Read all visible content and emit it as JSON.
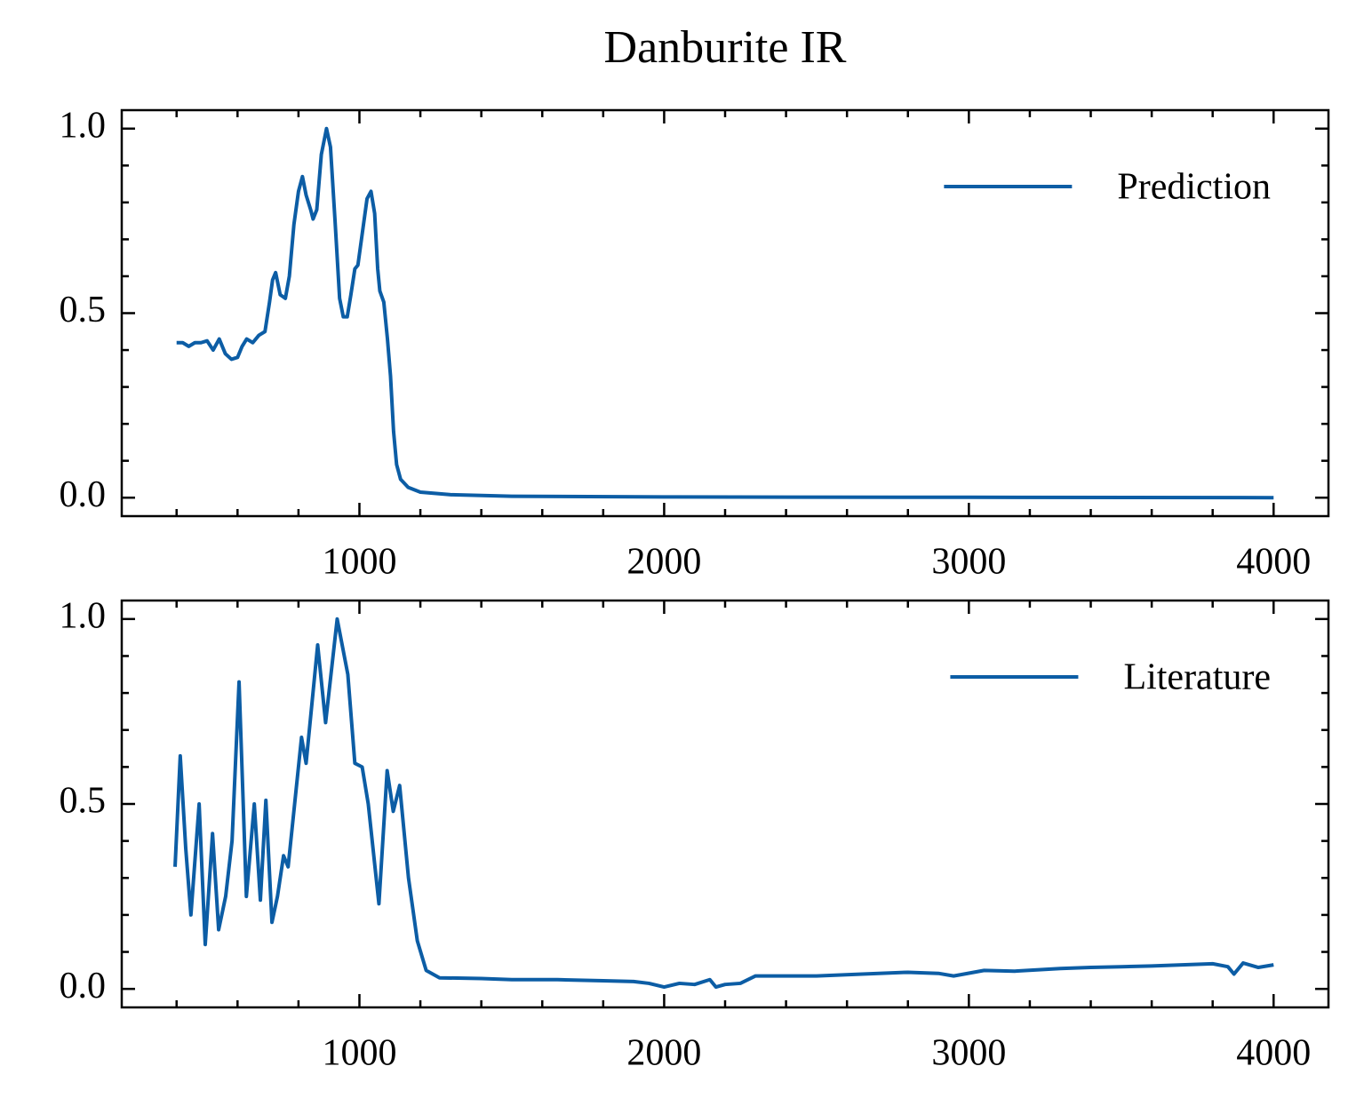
{
  "title": "Danburite IR",
  "chart_data": [
    {
      "type": "line",
      "x": [
        400,
        420,
        440,
        460,
        480,
        500,
        520,
        540,
        560,
        580,
        600,
        615,
        630,
        650,
        670,
        690,
        705,
        715,
        725,
        740,
        757,
        770,
        785,
        800,
        813,
        825,
        840,
        848,
        860,
        875,
        892,
        905,
        920,
        935,
        947,
        960,
        972,
        985,
        995,
        1010,
        1025,
        1038,
        1050,
        1060,
        1067,
        1080,
        1092,
        1102,
        1112,
        1122,
        1135,
        1160,
        1200,
        1300,
        1500,
        2000,
        3000,
        4000
      ],
      "series": [
        {
          "name": "Prediction",
          "color": "#0c5da5",
          "values": [
            0.42,
            0.42,
            0.41,
            0.42,
            0.42,
            0.425,
            0.4,
            0.43,
            0.39,
            0.375,
            0.38,
            0.41,
            0.43,
            0.42,
            0.44,
            0.45,
            0.53,
            0.59,
            0.61,
            0.55,
            0.54,
            0.6,
            0.74,
            0.83,
            0.87,
            0.82,
            0.78,
            0.755,
            0.78,
            0.93,
            1.0,
            0.95,
            0.75,
            0.54,
            0.49,
            0.49,
            0.55,
            0.62,
            0.63,
            0.72,
            0.81,
            0.83,
            0.77,
            0.62,
            0.56,
            0.53,
            0.43,
            0.33,
            0.18,
            0.09,
            0.05,
            0.028,
            0.015,
            0.008,
            0.004,
            0.002,
            0.001,
            0.0
          ]
        }
      ],
      "xlim": [
        220,
        4180
      ],
      "ylim": [
        -0.05,
        1.05
      ],
      "xticks": [
        1000,
        2000,
        3000,
        4000
      ],
      "yticks": [
        {
          "value": 0,
          "label": "0.0"
        },
        0.5,
        {
          "value": 1,
          "label": "1.0"
        }
      ],
      "xminorticks": [
        400,
        600,
        800,
        1200,
        1400,
        1600,
        1800,
        2200,
        2400,
        2600,
        2800,
        3200,
        3400,
        3600,
        3800
      ],
      "yminorticks": [
        0.1,
        0.2,
        0.3,
        0.4,
        0.6,
        0.7,
        0.8,
        0.9
      ],
      "legend": "upper right"
    },
    {
      "type": "line",
      "x": [
        395,
        412,
        430,
        447,
        474,
        494,
        518,
        538,
        561,
        582,
        605,
        629,
        655,
        675,
        693,
        713,
        731,
        751,
        766,
        810,
        825,
        863,
        889,
        927,
        962,
        985,
        1009,
        1029,
        1064,
        1091,
        1111,
        1132,
        1161,
        1190,
        1219,
        1263,
        1400,
        1500,
        1650,
        1800,
        1900,
        1950,
        2000,
        2050,
        2100,
        2150,
        2170,
        2200,
        2250,
        2300,
        2400,
        2500,
        2650,
        2800,
        2900,
        2950,
        3050,
        3150,
        3300,
        3400,
        3500,
        3600,
        3700,
        3800,
        3850,
        3870,
        3900,
        3950,
        4000
      ],
      "series": [
        {
          "name": "Literature",
          "color": "#0c5da5",
          "values": [
            0.33,
            0.63,
            0.38,
            0.2,
            0.5,
            0.12,
            0.42,
            0.16,
            0.25,
            0.4,
            0.83,
            0.25,
            0.5,
            0.24,
            0.51,
            0.18,
            0.25,
            0.36,
            0.33,
            0.68,
            0.61,
            0.93,
            0.72,
            1.0,
            0.85,
            0.61,
            0.6,
            0.5,
            0.23,
            0.59,
            0.48,
            0.55,
            0.3,
            0.13,
            0.05,
            0.03,
            0.028,
            0.025,
            0.025,
            0.022,
            0.02,
            0.015,
            0.005,
            0.015,
            0.012,
            0.025,
            0.005,
            0.012,
            0.015,
            0.035,
            0.035,
            0.035,
            0.04,
            0.045,
            0.042,
            0.035,
            0.05,
            0.048,
            0.055,
            0.058,
            0.06,
            0.062,
            0.065,
            0.068,
            0.06,
            0.04,
            0.07,
            0.058,
            0.065
          ]
        }
      ],
      "xlim": [
        220,
        4180
      ],
      "ylim": [
        -0.05,
        1.05
      ],
      "xticks": [
        1000,
        2000,
        3000,
        4000
      ],
      "yticks": [
        {
          "value": 0,
          "label": "0.0"
        },
        0.5,
        {
          "value": 1,
          "label": "1.0"
        }
      ],
      "xminorticks": [
        400,
        600,
        800,
        1200,
        1400,
        1600,
        1800,
        2200,
        2400,
        2600,
        2800,
        3200,
        3400,
        3600,
        3800
      ],
      "yminorticks": [
        0.1,
        0.2,
        0.3,
        0.4,
        0.6,
        0.7,
        0.8,
        0.9
      ],
      "legend": "upper right"
    }
  ]
}
